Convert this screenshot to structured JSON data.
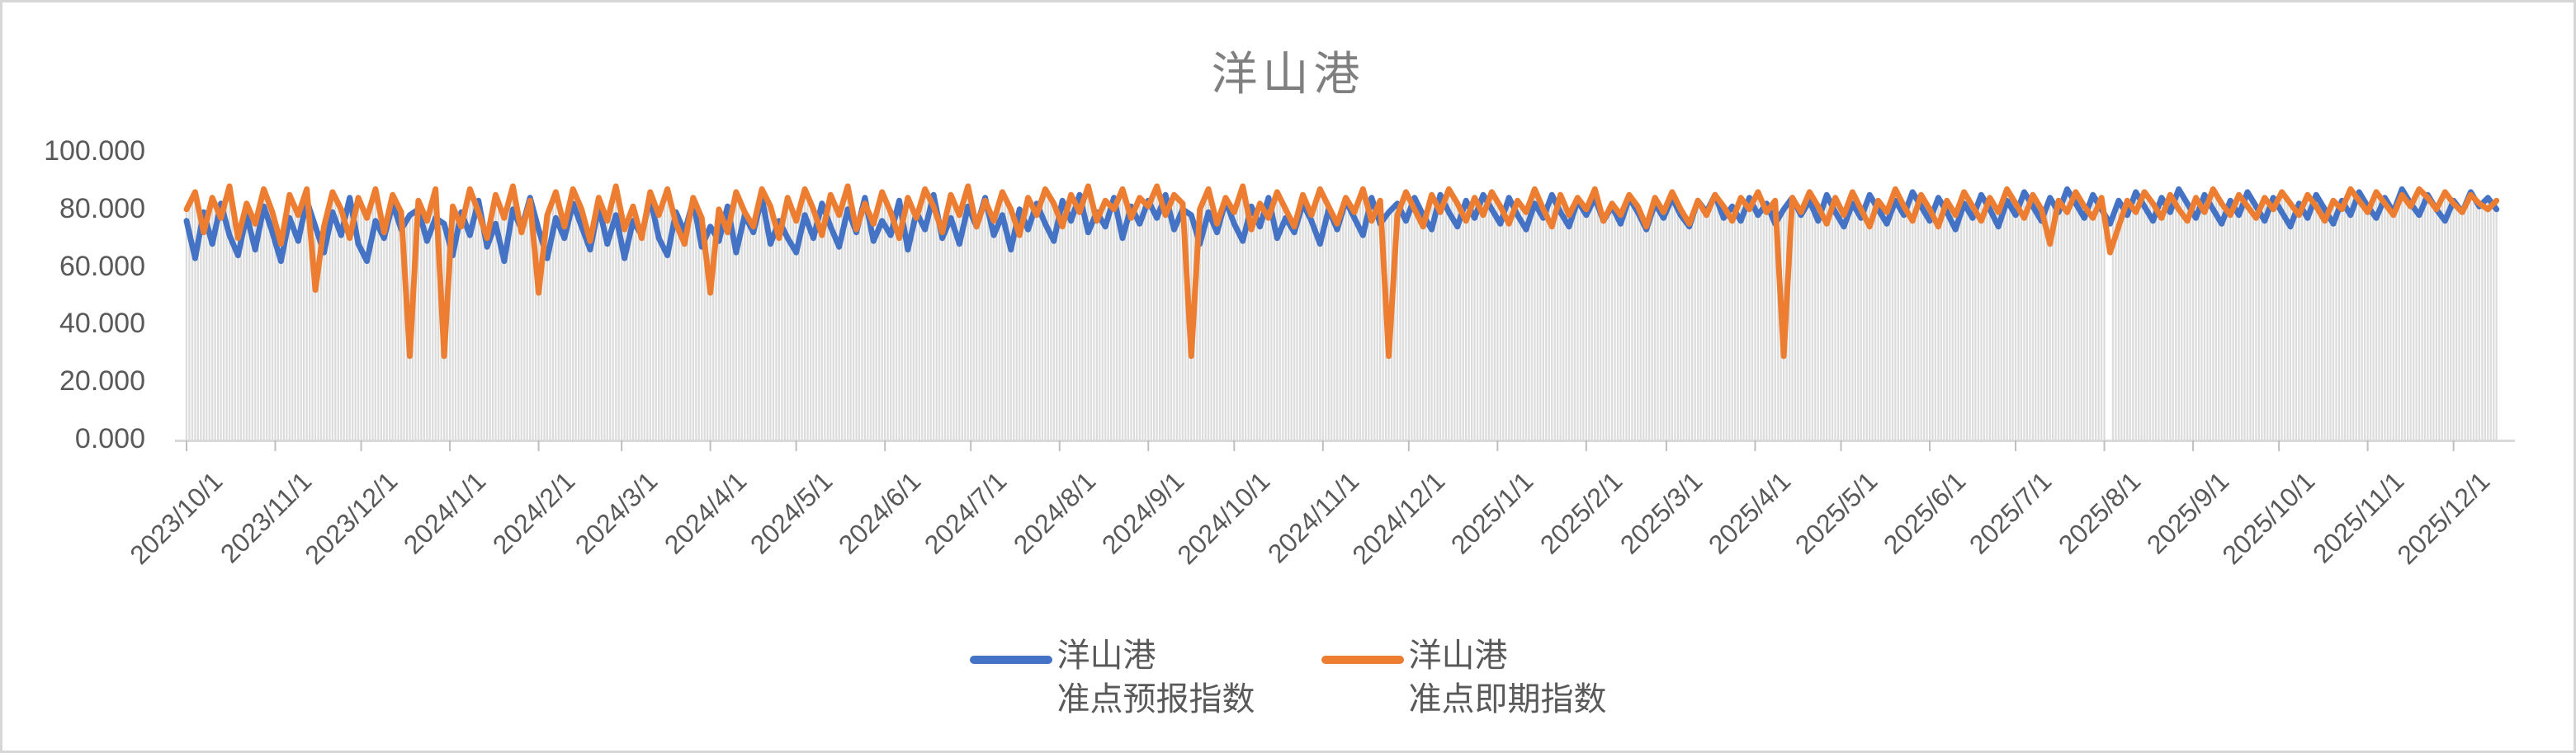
{
  "title": "洋山港",
  "y_axis": {
    "tick_values": [
      0,
      20,
      40,
      60,
      80,
      100
    ],
    "tick_labels": [
      "0.000",
      "20.000",
      "40.000",
      "60.000",
      "80.000",
      "100.000"
    ]
  },
  "legend": {
    "items": [
      {
        "line1": "洋山港",
        "line2": "准点预报指数",
        "color": "#4472C4"
      },
      {
        "line1": "洋山港",
        "line2": "准点即期指数",
        "color": "#ED7D31"
      }
    ]
  },
  "chart_data": {
    "type": "line",
    "title": "洋山港",
    "ylim": [
      0,
      100
    ],
    "grid": false,
    "legend_position": "bottom",
    "start_date": "2023/10/1",
    "end_date": "2025/12/16",
    "day_step": 3,
    "gap_days": [
      671,
      672
    ],
    "dropline_color": "#dcdcdc",
    "x_tick_labels": [
      "2023/10/1",
      "2023/11/1",
      "2023/12/1",
      "2024/1/1",
      "2024/2/1",
      "2024/3/1",
      "2024/4/1",
      "2024/5/1",
      "2024/6/1",
      "2024/7/1",
      "2024/8/1",
      "2024/9/1",
      "2024/10/1",
      "2024/11/1",
      "2024/12/1",
      "2025/1/1",
      "2025/2/1",
      "2025/3/1",
      "2025/4/1",
      "2025/5/1",
      "2025/6/1",
      "2025/7/1",
      "2025/8/1",
      "2025/9/1",
      "2025/10/1",
      "2025/11/1",
      "2025/12/1"
    ],
    "x_tick_days": [
      0,
      31,
      61,
      92,
      123,
      152,
      183,
      213,
      244,
      274,
      305,
      336,
      366,
      397,
      427,
      458,
      489,
      517,
      548,
      578,
      609,
      639,
      670,
      701,
      731,
      762,
      792
    ],
    "series": [
      {
        "name": "洋山港准点预报指数",
        "color": "#4472C4",
        "values": [
          76,
          63,
          79,
          68,
          82,
          71,
          64,
          78,
          66,
          81,
          72,
          62,
          77,
          69,
          83,
          74,
          65,
          79,
          71,
          84,
          68,
          62,
          76,
          70,
          82,
          73,
          78,
          80,
          69,
          77,
          75,
          64,
          79,
          71,
          83,
          67,
          75,
          62,
          80,
          73,
          84,
          73,
          63,
          77,
          70,
          82,
          74,
          66,
          81,
          68,
          78,
          63,
          76,
          71,
          84,
          70,
          64,
          79,
          72,
          83,
          67,
          74,
          69,
          81,
          65,
          78,
          72,
          84,
          68,
          76,
          70,
          65,
          78,
          70,
          82,
          74,
          67,
          80,
          72,
          84,
          69,
          76,
          71,
          83,
          66,
          79,
          73,
          85,
          70,
          77,
          68,
          81,
          74,
          84,
          71,
          78,
          66,
          80,
          73,
          82,
          75,
          69,
          83,
          76,
          85,
          72,
          79,
          74,
          84,
          70,
          81,
          75,
          83,
          77,
          85,
          73,
          80,
          78,
          68,
          79,
          72,
          83,
          75,
          69,
          81,
          74,
          84,
          70,
          77,
          72,
          82,
          76,
          68,
          80,
          73,
          83,
          77,
          71,
          84,
          75,
          79,
          82,
          76,
          84,
          78,
          73,
          85,
          79,
          74,
          83,
          77,
          85,
          80,
          75,
          84,
          78,
          73,
          82,
          77,
          85,
          79,
          74,
          83,
          78,
          84,
          76,
          81,
          75,
          84,
          79,
          73,
          82,
          77,
          84,
          78,
          74,
          83,
          79,
          85,
          77,
          81,
          76,
          84,
          78,
          82,
          75,
          80,
          84,
          78,
          83,
          76,
          85,
          79,
          74,
          82,
          77,
          85,
          80,
          75,
          83,
          78,
          86,
          81,
          76,
          84,
          79,
          73,
          82,
          77,
          85,
          80,
          74,
          83,
          78,
          86,
          81,
          76,
          84,
          79,
          87,
          82,
          77,
          85,
          80,
          75,
          83,
          78,
          86,
          81,
          76,
          84,
          79,
          87,
          82,
          77,
          85,
          80,
          75,
          83,
          78,
          86,
          81,
          76,
          84,
          79,
          74,
          82,
          77,
          85,
          80,
          75,
          83,
          78,
          86,
          81,
          77,
          84,
          79,
          87,
          82,
          78,
          85,
          80,
          76,
          83,
          79,
          86,
          81,
          84,
          80
        ]
      },
      {
        "name": "洋山港准点即期指数",
        "color": "#ED7D31",
        "values": [
          80,
          86,
          72,
          84,
          77,
          88,
          70,
          82,
          75,
          87,
          79,
          68,
          85,
          78,
          87,
          52,
          74,
          86,
          80,
          70,
          84,
          77,
          87,
          72,
          85,
          79,
          29,
          83,
          76,
          87,
          29,
          81,
          74,
          87,
          79,
          70,
          85,
          77,
          88,
          72,
          83,
          51,
          78,
          86,
          74,
          87,
          80,
          69,
          84,
          76,
          88,
          73,
          81,
          70,
          86,
          78,
          87,
          75,
          68,
          84,
          77,
          51,
          80,
          72,
          86,
          79,
          74,
          87,
          81,
          70,
          84,
          76,
          87,
          80,
          71,
          85,
          78,
          88,
          73,
          82,
          75,
          86,
          79,
          70,
          84,
          77,
          87,
          81,
          72,
          85,
          78,
          88,
          74,
          83,
          76,
          86,
          80,
          71,
          84,
          78,
          87,
          82,
          74,
          85,
          79,
          88,
          76,
          83,
          80,
          87,
          77,
          84,
          81,
          88,
          78,
          85,
          82,
          29,
          80,
          87,
          75,
          84,
          79,
          88,
          73,
          82,
          77,
          86,
          80,
          74,
          85,
          78,
          87,
          81,
          75,
          84,
          79,
          87,
          76,
          83,
          29,
          78,
          86,
          80,
          74,
          85,
          79,
          87,
          82,
          76,
          84,
          78,
          86,
          81,
          75,
          83,
          79,
          87,
          80,
          74,
          85,
          78,
          84,
          80,
          87,
          76,
          82,
          78,
          85,
          81,
          74,
          84,
          79,
          86,
          80,
          75,
          83,
          78,
          85,
          81,
          76,
          84,
          80,
          86,
          79,
          83,
          29,
          84,
          79,
          86,
          81,
          75,
          84,
          78,
          86,
          80,
          74,
          83,
          79,
          87,
          81,
          76,
          85,
          80,
          74,
          83,
          78,
          86,
          81,
          76,
          84,
          79,
          87,
          82,
          77,
          85,
          80,
          68,
          83,
          79,
          86,
          81,
          77,
          84,
          65,
          74,
          83,
          79,
          86,
          82,
          77,
          85,
          80,
          76,
          84,
          79,
          87,
          82,
          78,
          85,
          81,
          77,
          84,
          80,
          86,
          82,
          78,
          85,
          81,
          76,
          83,
          80,
          87,
          83,
          79,
          86,
          82,
          78,
          85,
          81,
          87,
          84,
          80,
          86,
          82,
          79,
          85,
          82,
          80,
          83
        ]
      }
    ]
  }
}
